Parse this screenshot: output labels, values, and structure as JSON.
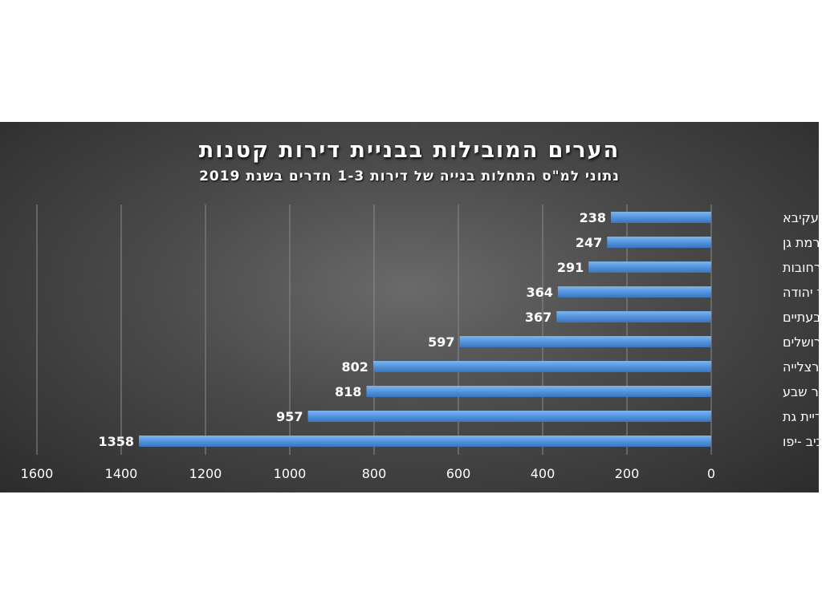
{
  "chart_data": {
    "type": "bar",
    "orientation": "horizontal",
    "title": "הערים המובילות בבניית דירות קטנות",
    "subtitle": "נתוני למ\"ס התחלות בנייה של דירות 1-3 חדרים בשנת 2019",
    "categories": [
      "אור עקיבא",
      "רמת גן",
      "רחובות",
      "אור יהודה",
      "גבעתיים",
      "ירושלים",
      "הרצלייה",
      "באר שבע",
      "קריית גת",
      "תל אביב -יפו"
    ],
    "values": [
      238,
      247,
      291,
      364,
      367,
      597,
      802,
      818,
      957,
      1358
    ],
    "xlim": [
      0,
      1600
    ],
    "xticks": [
      0,
      200,
      400,
      600,
      800,
      1000,
      1200,
      1400,
      1600
    ],
    "x_reversed": true,
    "grid": true,
    "bar_color": "#4f92dc",
    "background_color": "#4a4a4a"
  }
}
